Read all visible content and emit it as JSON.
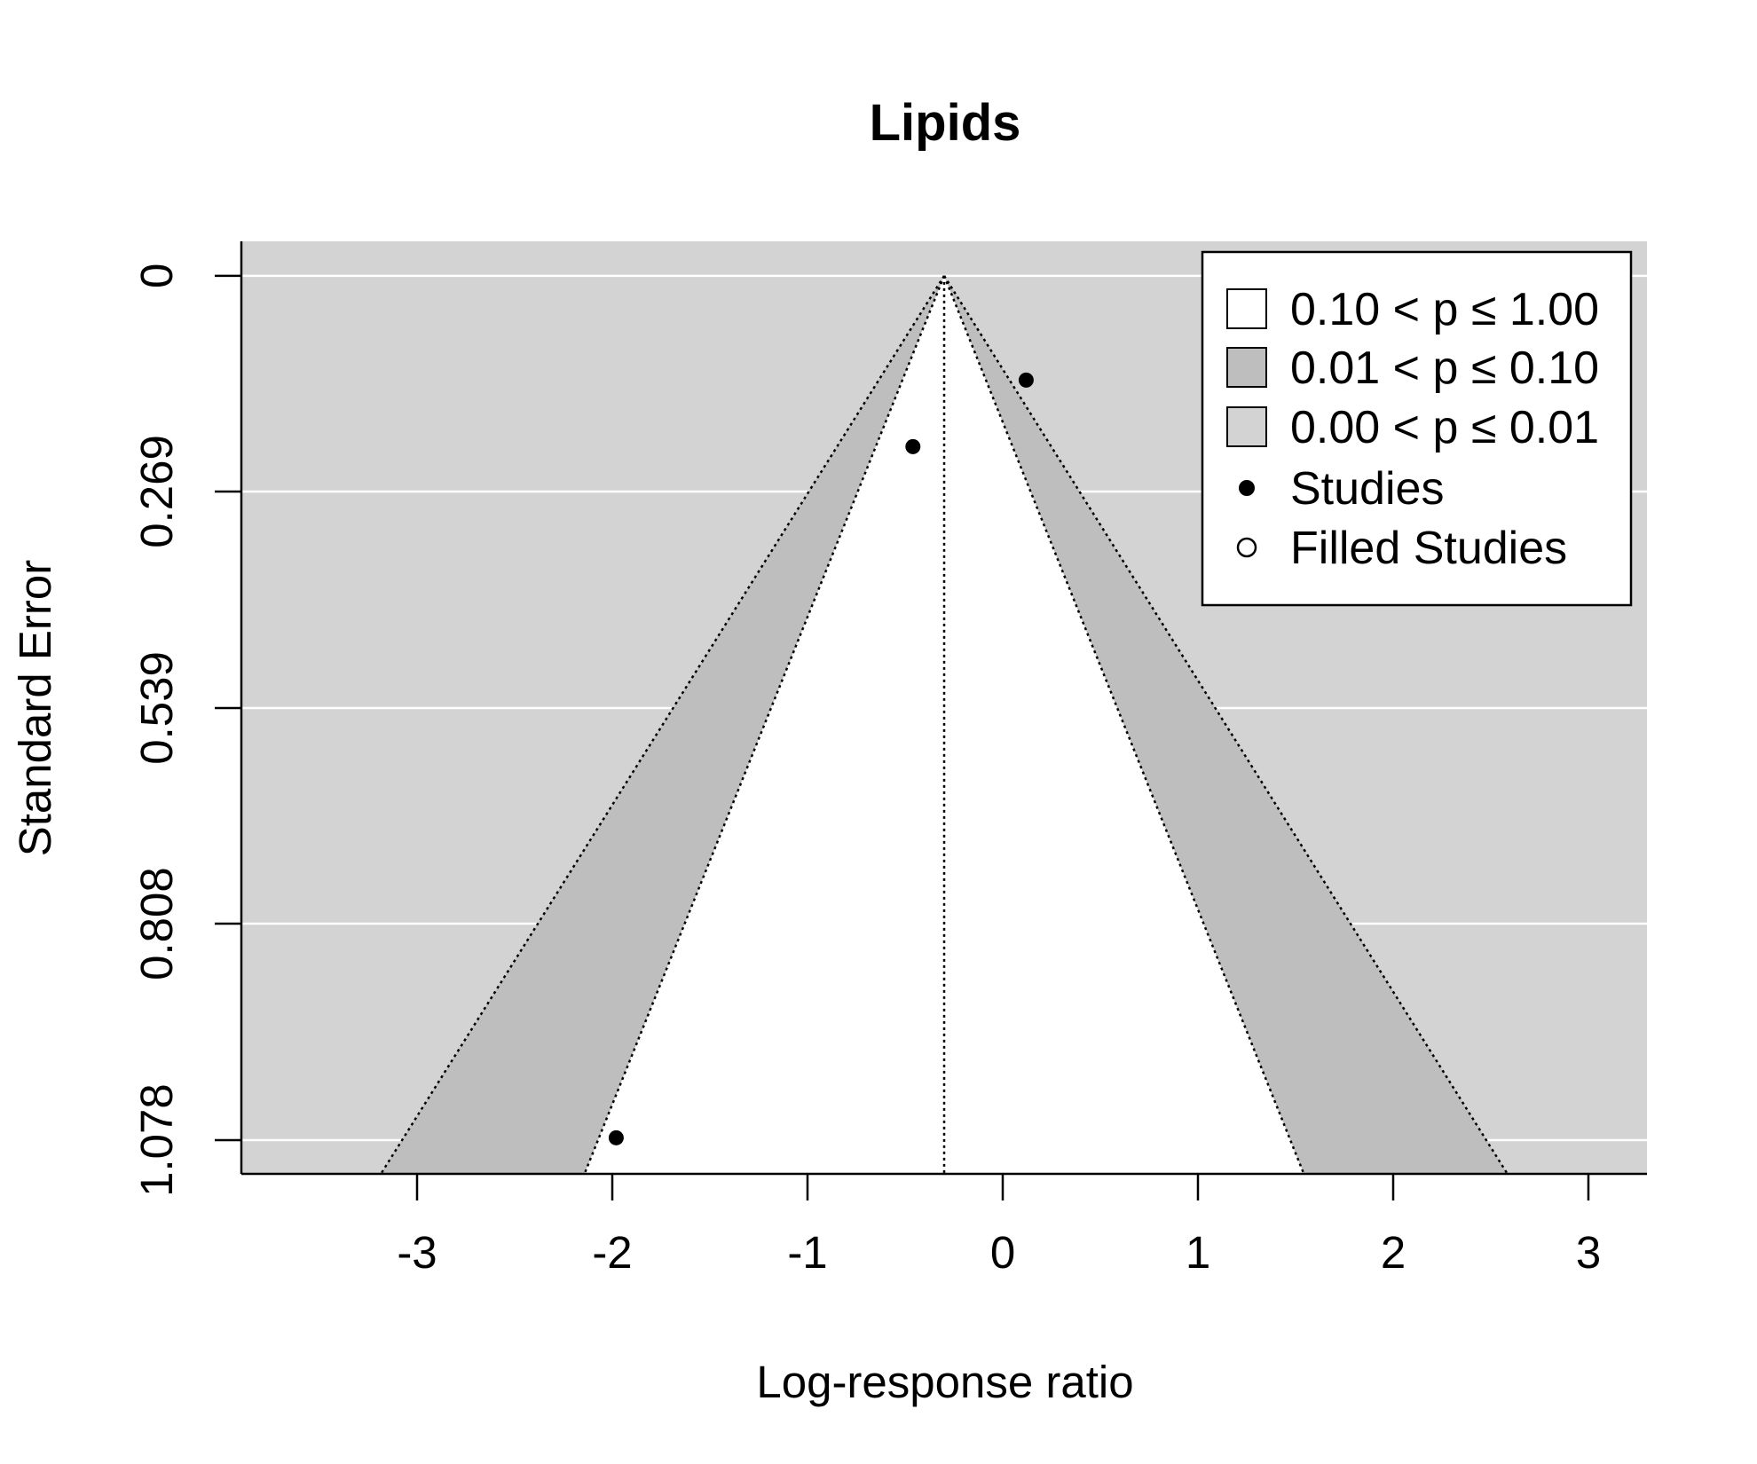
{
  "chart_data": {
    "type": "scatter",
    "subtype": "contour-enhanced funnel plot",
    "title": "Lipids",
    "xlabel": "Log-response ratio",
    "ylabel": "Standard Error",
    "xlim": [
      -3.9,
      3.3
    ],
    "ylim": [
      1.12,
      -0.043
    ],
    "y_reversed": true,
    "x_ticks": [
      -3,
      -2,
      -1,
      0,
      1,
      2,
      3
    ],
    "x_tick_labels": [
      "-3",
      "-2",
      "-1",
      "0",
      "1",
      "2",
      "3"
    ],
    "y_ticks": [
      0,
      0.269,
      0.539,
      0.808,
      1.078
    ],
    "y_tick_labels": [
      "0",
      "0.269",
      "0.539",
      "0.808",
      "1.078"
    ],
    "center_estimate": -0.3,
    "contours": [
      {
        "label": "0.10 < p ≤ 1.00",
        "z": 1.645,
        "color": "#ffffff"
      },
      {
        "label": "0.01 < p ≤ 0.10",
        "z": 2.576,
        "color": "#bebebe"
      },
      {
        "label": "0.00 < p ≤ 0.01",
        "color": "#d3d3d3"
      }
    ],
    "series": [
      {
        "name": "Studies",
        "marker": "filled-circle",
        "x": [
          0.12,
          -0.46,
          -1.98
        ],
        "y": [
          0.13,
          0.213,
          1.075
        ]
      },
      {
        "name": "Filled Studies",
        "marker": "open-circle",
        "x": [],
        "y": []
      }
    ],
    "grid": true,
    "legend_position": "top-right"
  },
  "colors": {
    "panel_bg": "#d3d3d3",
    "contour_mid": "#bebebe",
    "contour_inner": "#ffffff",
    "grid": "#ffffff",
    "point": "#000000"
  }
}
